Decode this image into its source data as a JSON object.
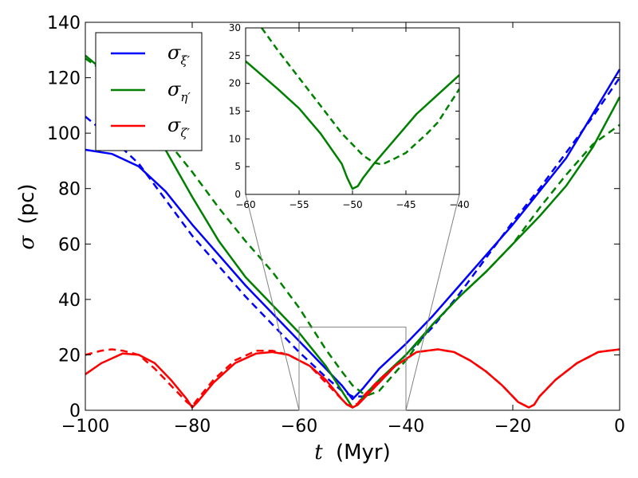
{
  "chart_data": {
    "type": "line",
    "xlabel": "t (Myr)",
    "xlabel_var": "t",
    "xlabel_unit": "(Myr)",
    "ylabel": "σ (pc)",
    "ylabel_var": "σ",
    "ylabel_unit": "(pc)",
    "xlim": [
      -100,
      0
    ],
    "ylim": [
      0,
      140
    ],
    "xticks": [
      -100,
      -80,
      -60,
      -40,
      -20,
      0
    ],
    "xtick_labels": [
      "−100",
      "−80",
      "−60",
      "−40",
      "−20",
      "0"
    ],
    "yticks": [
      0,
      20,
      40,
      60,
      80,
      100,
      120,
      140
    ],
    "ytick_labels": [
      "0",
      "20",
      "40",
      "60",
      "80",
      "100",
      "120",
      "140"
    ],
    "legend_position": "top-left",
    "legend": [
      {
        "symbol": "σ",
        "subscript": "ξ′",
        "color": "#0000ff"
      },
      {
        "symbol": "σ",
        "subscript": "η′",
        "color": "#008000"
      },
      {
        "symbol": "σ",
        "subscript": "ζ′",
        "color": "#ff0000"
      }
    ],
    "zoom_box": {
      "x": [
        -60,
        -40
      ],
      "y": [
        0,
        30
      ]
    },
    "series": [
      {
        "name": "σξ′ solid",
        "color": "#0000ff",
        "dash": "solid",
        "x": [
          -100,
          -95,
          -90,
          -85,
          -80,
          -75,
          -70,
          -65,
          -60,
          -55,
          -52,
          -50,
          -48,
          -45,
          -40,
          -35,
          -30,
          -25,
          -20,
          -15,
          -10,
          -5,
          0
        ],
        "y": [
          94,
          92.5,
          88,
          79,
          67,
          56,
          45,
          35,
          25,
          15,
          9,
          4,
          8,
          15,
          24,
          34,
          45,
          56,
          67,
          79,
          91,
          107,
          123
        ]
      },
      {
        "name": "σξ′ dashed",
        "color": "#0000ff",
        "dash": "dashed",
        "x": [
          -100,
          -95,
          -90,
          -85,
          -80,
          -75,
          -70,
          -65,
          -60,
          -55,
          -52,
          -50,
          -48,
          -46,
          -44,
          -40,
          -35,
          -30,
          -25,
          -20,
          -15,
          -10,
          -5,
          0
        ],
        "y": [
          106,
          98,
          89,
          76,
          63,
          52,
          41,
          31,
          21,
          12,
          7,
          5,
          5,
          8,
          12,
          20,
          30,
          42,
          55,
          68,
          80,
          93,
          106,
          120
        ]
      },
      {
        "name": "ση′ solid",
        "color": "#008000",
        "dash": "solid",
        "x": [
          -100,
          -95,
          -90,
          -85,
          -80,
          -75,
          -70,
          -65,
          -60,
          -55,
          -52,
          -50,
          -49,
          -48,
          -45,
          -40,
          -35,
          -30,
          -25,
          -20,
          -15,
          -10,
          -5,
          0
        ],
        "y": [
          128,
          120,
          109,
          94,
          77,
          61,
          48,
          38,
          28,
          16,
          7,
          1,
          2,
          5,
          11,
          20,
          31,
          41,
          50,
          60,
          70,
          81,
          95,
          113
        ]
      },
      {
        "name": "ση′ dashed",
        "color": "#008000",
        "dash": "dashed",
        "x": [
          -100,
          -95,
          -90,
          -85,
          -80,
          -75,
          -70,
          -65,
          -60,
          -55,
          -52,
          -50,
          -48,
          -47,
          -45,
          -40,
          -35,
          -30,
          -25,
          -20,
          -15,
          -10,
          -5,
          0
        ],
        "y": [
          127,
          120,
          111,
          98,
          86,
          73,
          61,
          50,
          37,
          22,
          14,
          9,
          6,
          5.5,
          7,
          18,
          31,
          41,
          50,
          60,
          73,
          85,
          96,
          103
        ]
      },
      {
        "name": "σζ′ solid",
        "color": "#ff0000",
        "dash": "solid",
        "x": [
          -100,
          -97,
          -93,
          -90,
          -87,
          -84,
          -81,
          -80,
          -79,
          -76,
          -72,
          -68,
          -65,
          -62,
          -58,
          -55,
          -52,
          -51,
          -50,
          -49,
          -48,
          -45,
          -42,
          -38,
          -34,
          -31,
          -28,
          -25,
          -22,
          -19,
          -17,
          -16,
          -15,
          -12,
          -8,
          -4,
          0
        ],
        "y": [
          13,
          17,
          20.5,
          20,
          17,
          11,
          4,
          1,
          3,
          10,
          17,
          20.5,
          21,
          20,
          16,
          11,
          4,
          2,
          1,
          2,
          4,
          10,
          16,
          21,
          22,
          21,
          18,
          14,
          9,
          3,
          1,
          2,
          5,
          11,
          17,
          21,
          22
        ]
      },
      {
        "name": "σζ′ dashed",
        "color": "#ff0000",
        "dash": "dashed",
        "x": [
          -100,
          -97,
          -95,
          -93,
          -90,
          -87,
          -84,
          -81,
          -80,
          -79,
          -76,
          -72,
          -68,
          -65,
          -62,
          -58,
          -55,
          -52,
          -51,
          -50,
          -49,
          -48,
          -45,
          -42,
          -38,
          -34,
          -31,
          -28,
          -25,
          -22,
          -19,
          -17,
          -16,
          -15,
          -12,
          -8,
          -4,
          0
        ],
        "y": [
          20,
          21.5,
          22,
          21.5,
          20,
          15,
          9,
          3,
          1.5,
          4,
          11,
          18,
          21.5,
          21.5,
          20,
          16,
          10,
          4,
          2,
          1.5,
          2.5,
          5,
          11,
          16,
          21,
          22,
          21,
          18,
          14,
          9,
          3,
          1,
          2,
          5,
          11,
          17,
          21,
          22
        ]
      }
    ],
    "inset": {
      "xlim": [
        -60,
        -40
      ],
      "ylim": [
        0,
        30
      ],
      "xticks": [
        -60,
        -55,
        -50,
        -45,
        -40
      ],
      "xtick_labels": [
        "−60",
        "−55",
        "−50",
        "−45",
        "−40"
      ],
      "yticks": [
        0,
        5,
        10,
        15,
        20,
        25,
        30
      ],
      "ytick_labels": [
        "0",
        "5",
        "10",
        "15",
        "20",
        "25",
        "30"
      ],
      "series": [
        {
          "name": "ση′ solid (zoom)",
          "color": "#008000",
          "dash": "solid",
          "x": [
            -60,
            -57,
            -55,
            -53,
            -51,
            -50.5,
            -50,
            -49.5,
            -49,
            -48,
            -46,
            -44,
            -42,
            -40
          ],
          "y": [
            24,
            19,
            15.5,
            11,
            5.5,
            3,
            1,
            1.5,
            3,
            5.5,
            10,
            14.5,
            18,
            21.5
          ]
        },
        {
          "name": "ση′ dashed (zoom)",
          "color": "#008000",
          "dash": "dashed",
          "x": [
            -58.5,
            -57,
            -55,
            -53,
            -51,
            -50,
            -49,
            -48,
            -47.5,
            -47,
            -46,
            -45,
            -43,
            -42,
            -40
          ],
          "y": [
            30,
            26,
            21,
            16,
            11,
            9,
            7,
            5.7,
            5.5,
            5.6,
            6.5,
            7.5,
            11,
            13,
            19
          ]
        }
      ]
    }
  }
}
